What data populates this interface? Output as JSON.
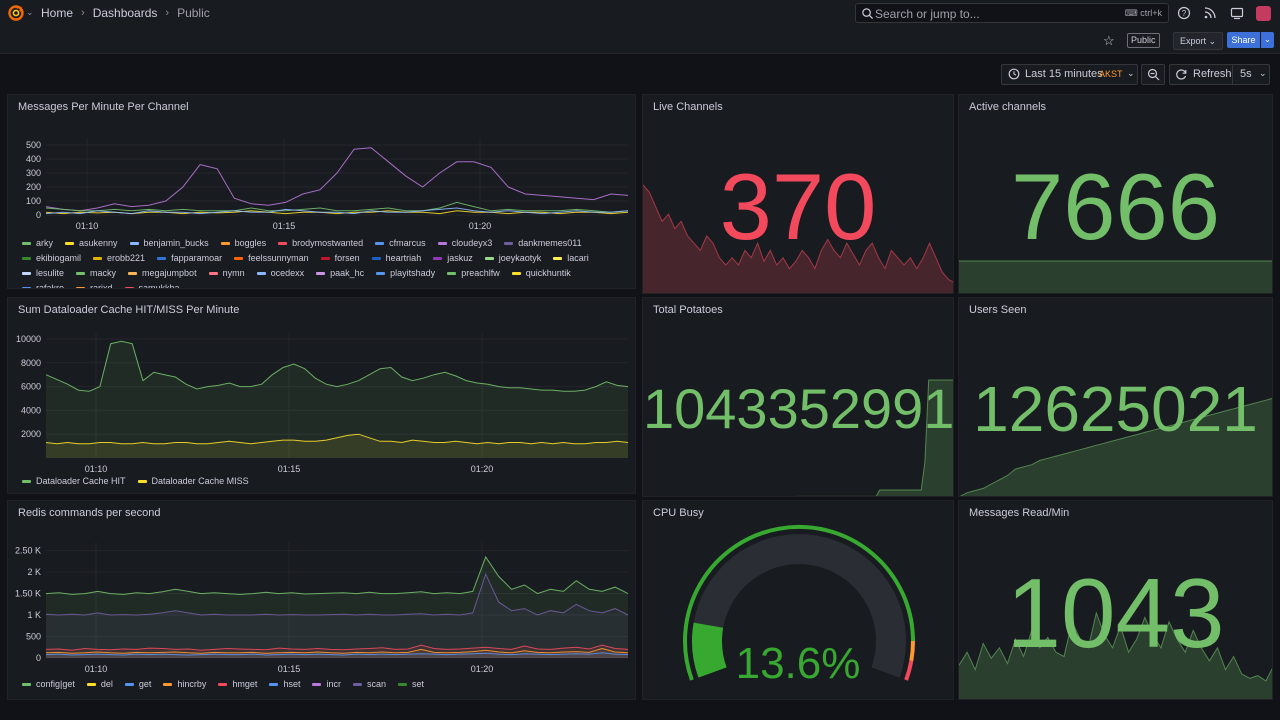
{
  "breadcrumb": {
    "home": "Home",
    "dashboards": "Dashboards",
    "current": "Public"
  },
  "search": {
    "placeholder": "Search or jump to...",
    "shortcut": "ctrl+k"
  },
  "toolbar": {
    "public_tag": "Public",
    "export_label": "Export",
    "share_label": "Share"
  },
  "time": {
    "range_label": "Last 15 minutes",
    "timezone": "AKST",
    "refresh_label": "Refresh",
    "interval": "5s"
  },
  "colors": {
    "green": "#73bf69",
    "red": "#f2495c",
    "yellow": "#fade2a",
    "blue": "#5794f2",
    "orange": "#ff9830",
    "purple": "#b877d9"
  },
  "panels": {
    "messages_per_minute": {
      "title": "Messages Per Minute Per Channel",
      "legend": [
        {
          "name": "arky",
          "color": "#73bf69"
        },
        {
          "name": "asukenny",
          "color": "#fade2a"
        },
        {
          "name": "benjamin_bucks",
          "color": "#8ab8ff"
        },
        {
          "name": "boggles",
          "color": "#ff9830"
        },
        {
          "name": "brodymostwanted",
          "color": "#f2495c"
        },
        {
          "name": "cfmarcus",
          "color": "#5794f2"
        },
        {
          "name": "cloudeyx3",
          "color": "#b877d9"
        },
        {
          "name": "dankmemes011",
          "color": "#705da0"
        },
        {
          "name": "ekibiogamil",
          "color": "#37872d"
        },
        {
          "name": "erobb221",
          "color": "#e0b400"
        },
        {
          "name": "fapparamoar",
          "color": "#3274d9"
        },
        {
          "name": "feelssunnyman",
          "color": "#fa6400"
        },
        {
          "name": "forsen",
          "color": "#c4162a"
        },
        {
          "name": "heartriah",
          "color": "#1f60c4"
        },
        {
          "name": "jaskuz",
          "color": "#8f3bb8"
        },
        {
          "name": "joeykaotyk",
          "color": "#96d98d"
        },
        {
          "name": "lacari",
          "color": "#ffee52"
        },
        {
          "name": "lesulite",
          "color": "#c0d8ff"
        },
        {
          "name": "macky",
          "color": "#73bf69"
        },
        {
          "name": "megajumpbot",
          "color": "#ffb357"
        },
        {
          "name": "nymn",
          "color": "#ff7383"
        },
        {
          "name": "ocedexx",
          "color": "#8ab8ff"
        },
        {
          "name": "paak_hc",
          "color": "#ca95e5"
        },
        {
          "name": "playitshady",
          "color": "#5794f2"
        },
        {
          "name": "preachlfw",
          "color": "#73bf69"
        },
        {
          "name": "quickhuntik",
          "color": "#fade2a"
        },
        {
          "name": "rafakro",
          "color": "#5794f2"
        },
        {
          "name": "rarjxd",
          "color": "#ff9830"
        },
        {
          "name": "samukkha",
          "color": "#f2495c"
        }
      ]
    },
    "live_channels": {
      "title": "Live Channels",
      "value": "370"
    },
    "active_channels": {
      "title": "Active channels",
      "value": "7666"
    },
    "dataloader": {
      "title": "Sum Dataloader Cache HIT/MISS Per Minute",
      "legend": [
        {
          "name": "Dataloader Cache HIT",
          "color": "#73bf69"
        },
        {
          "name": "Dataloader Cache MISS",
          "color": "#fade2a"
        }
      ]
    },
    "total_potatoes": {
      "title": "Total Potatoes",
      "value": "1043352991"
    },
    "users_seen": {
      "title": "Users Seen",
      "value": "12625021"
    },
    "redis": {
      "title": "Redis commands per second",
      "legend": [
        {
          "name": "config|get",
          "color": "#73bf69"
        },
        {
          "name": "del",
          "color": "#fade2a"
        },
        {
          "name": "get",
          "color": "#5794f2"
        },
        {
          "name": "hincrby",
          "color": "#ff9830"
        },
        {
          "name": "hmget",
          "color": "#f2495c"
        },
        {
          "name": "hset",
          "color": "#5794f2"
        },
        {
          "name": "incr",
          "color": "#b877d9"
        },
        {
          "name": "scan",
          "color": "#705da0"
        },
        {
          "name": "set",
          "color": "#37872d"
        }
      ]
    },
    "cpu_busy": {
      "title": "CPU Busy",
      "value": "13.6%",
      "percent": 13.6
    },
    "messages_read": {
      "title": "Messages Read/Min",
      "value": "1043"
    }
  },
  "chart_data": [
    {
      "type": "line",
      "title": "Messages Per Minute Per Channel",
      "x_ticks": [
        "01:10",
        "01:15",
        "01:20"
      ],
      "y_ticks": [
        "0",
        "100",
        "200",
        "300",
        "400",
        "500"
      ],
      "ylim": [
        0,
        550
      ],
      "series": [
        {
          "name": "cloudeyx3",
          "color": "#b877d9",
          "values": [
            60,
            40,
            30,
            50,
            80,
            60,
            70,
            100,
            200,
            360,
            330,
            120,
            80,
            70,
            90,
            150,
            180,
            300,
            470,
            480,
            380,
            280,
            200,
            300,
            380,
            380,
            340,
            200,
            150,
            140,
            130,
            120,
            110,
            150,
            140
          ]
        },
        {
          "name": "arky",
          "color": "#73bf69",
          "values": [
            50,
            40,
            30,
            30,
            40,
            30,
            40,
            30,
            40,
            30,
            30,
            30,
            50,
            30,
            30,
            40,
            50,
            30,
            30,
            40,
            50,
            30,
            30,
            50,
            90,
            60,
            30,
            40,
            30,
            30,
            30,
            40,
            30,
            20,
            30
          ]
        },
        {
          "name": "asukenny",
          "color": "#fade2a",
          "values": [
            20,
            10,
            20,
            15,
            20,
            10,
            20,
            20,
            10,
            20,
            15,
            20,
            30,
            20,
            10,
            20,
            20,
            10,
            20,
            20,
            30,
            20,
            20,
            10,
            30,
            20,
            20,
            10,
            20,
            20,
            10,
            20,
            20,
            10,
            20
          ]
        },
        {
          "name": "benjamin_bucks",
          "color": "#8ab8ff",
          "values": [
            10,
            20,
            10,
            30,
            20,
            10,
            30,
            20,
            20,
            10,
            20,
            30,
            20,
            20,
            40,
            30,
            20,
            20,
            10,
            30,
            20,
            20,
            30,
            40,
            50,
            30,
            20,
            30,
            20,
            10,
            20,
            30,
            20,
            20,
            30
          ]
        }
      ]
    },
    {
      "type": "area",
      "title": "Sum Dataloader Cache HIT/MISS Per Minute",
      "x_ticks": [
        "01:10",
        "01:15",
        "01:20"
      ],
      "y_ticks": [
        "2000",
        "4000",
        "6000",
        "8000",
        "10000"
      ],
      "ylim": [
        0,
        10500
      ],
      "series": [
        {
          "name": "Dataloader Cache HIT",
          "color": "#73bf69",
          "values": [
            7000,
            6600,
            6200,
            5700,
            5600,
            6000,
            9600,
            9800,
            9600,
            6500,
            7200,
            7000,
            6800,
            6200,
            5800,
            6000,
            6100,
            6300,
            6000,
            6000,
            6200,
            7000,
            7600,
            7900,
            7500,
            6700,
            6200,
            6000,
            6200,
            6500,
            7000,
            7500,
            7600,
            6800,
            6500,
            6700,
            7000,
            7200,
            6900,
            6500,
            6300,
            6200,
            6000,
            5900,
            5900,
            5800,
            5700,
            5700,
            5600,
            5600,
            5700,
            6000,
            6400,
            6100,
            6000
          ]
        },
        {
          "name": "Dataloader Cache MISS",
          "color": "#fade2a",
          "values": [
            1300,
            1200,
            1300,
            1200,
            1200,
            1300,
            1300,
            1200,
            1200,
            1300,
            1200,
            1200,
            1300,
            1300,
            1200,
            1200,
            1300,
            1400,
            1300,
            1200,
            1300,
            1400,
            1500,
            1500,
            1400,
            1400,
            1500,
            1700,
            1900,
            2000,
            1700,
            1400,
            1400,
            1300,
            1500,
            1400,
            1300,
            1300,
            1400,
            1300,
            1200,
            1300,
            1200,
            1300,
            1300,
            1200,
            1300,
            1200,
            1300,
            1200,
            1200,
            1300,
            1300,
            1400,
            1300
          ]
        }
      ]
    },
    {
      "type": "area",
      "title": "Redis commands per second",
      "x_ticks": [
        "01:10",
        "01:15",
        "01:20"
      ],
      "y_ticks": [
        "0",
        "500",
        "1 K",
        "1.50 K",
        "2 K",
        "2.50 K"
      ],
      "ylim": [
        0,
        2700
      ],
      "series": [
        {
          "name": "config|get",
          "color": "#73bf69",
          "values": [
            1500,
            1520,
            1480,
            1500,
            1550,
            1500,
            1480,
            1520,
            1500,
            1540,
            1600,
            1550,
            1500,
            1520,
            1500,
            1480,
            1500,
            1530,
            1500,
            1520,
            1490,
            1500,
            1510,
            1520,
            1500,
            1530,
            1500,
            1500,
            1520,
            1540,
            1500,
            1520,
            1500,
            1550,
            2350,
            1900,
            1600,
            1700,
            1500,
            1600,
            1550,
            1800,
            1600,
            1550,
            1650,
            1500
          ]
        },
        {
          "name": "scan",
          "color": "#705da0",
          "values": [
            1020,
            1000,
            1020,
            1000,
            1050,
            1000,
            1010,
            1000,
            1020,
            1050,
            1100,
            1050,
            1000,
            1020,
            1000,
            1000,
            1000,
            1020,
            1000,
            1010,
            1000,
            1000,
            1010,
            1020,
            1000,
            1020,
            1000,
            1000,
            1020,
            1030,
            1000,
            1020,
            1000,
            1050,
            1950,
            1300,
            1100,
            1150,
            1000,
            1100,
            1050,
            1250,
            1100,
            1050,
            1150,
            1000
          ]
        },
        {
          "name": "hmget",
          "color": "#f2495c",
          "values": [
            200,
            210,
            180,
            220,
            200,
            190,
            210,
            200,
            230,
            220,
            200,
            210,
            180,
            200,
            220,
            210,
            200,
            190,
            230,
            210,
            200,
            220,
            200,
            190,
            210,
            220,
            240,
            200,
            210,
            300,
            220,
            200,
            210,
            230,
            250,
            220,
            200,
            280,
            210,
            200,
            230,
            250,
            210,
            300,
            220,
            200
          ]
        },
        {
          "name": "hincrby",
          "color": "#ff9830",
          "values": [
            120,
            130,
            110,
            120,
            140,
            120,
            110,
            130,
            120,
            130,
            140,
            120,
            110,
            130,
            120,
            120,
            130,
            110,
            120,
            130,
            120,
            140,
            120,
            110,
            130,
            120,
            140,
            120,
            130,
            200,
            130,
            120,
            130,
            150,
            180,
            140,
            120,
            170,
            130,
            120,
            140,
            150,
            130,
            220,
            140,
            120
          ]
        },
        {
          "name": "get",
          "color": "#5794f2",
          "values": [
            80,
            90,
            70,
            80,
            90,
            80,
            70,
            90,
            80,
            90,
            80,
            70,
            80,
            90,
            80,
            80,
            90,
            70,
            80,
            90,
            80,
            90,
            80,
            70,
            90,
            80,
            90,
            80,
            90,
            100,
            90,
            80,
            90,
            100,
            110,
            90,
            80,
            100,
            90,
            80,
            90,
            100,
            90,
            120,
            90,
            80
          ]
        }
      ]
    }
  ]
}
